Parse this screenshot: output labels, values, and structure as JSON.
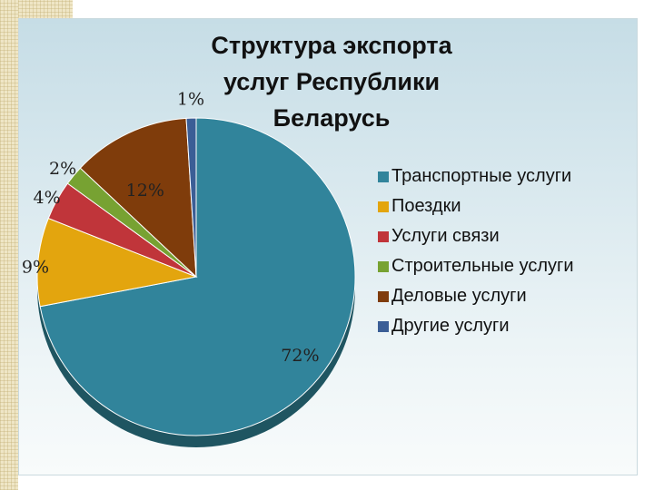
{
  "chart_data": {
    "type": "pie",
    "title": "Структура экспорта услуг Республики Беларусь",
    "title_lines": [
      "Структура экспорта",
      "услуг Республики",
      "Беларусь"
    ],
    "labels": [
      "Транспортные услуги",
      "Поездки",
      "Услуги связи",
      "Строительные услуги",
      "Деловые услуги",
      "Другие услуги"
    ],
    "values": [
      72,
      9,
      4,
      2,
      12,
      1
    ],
    "value_labels": [
      "72%",
      "9%",
      "4%",
      "2%",
      "12%",
      "1%"
    ],
    "colors": [
      "#31849b",
      "#e3a50e",
      "#c0353a",
      "#77a232",
      "#7f3c0b",
      "#3b5e96"
    ],
    "legend_position": "right",
    "start_direction": "clockwise from top"
  }
}
